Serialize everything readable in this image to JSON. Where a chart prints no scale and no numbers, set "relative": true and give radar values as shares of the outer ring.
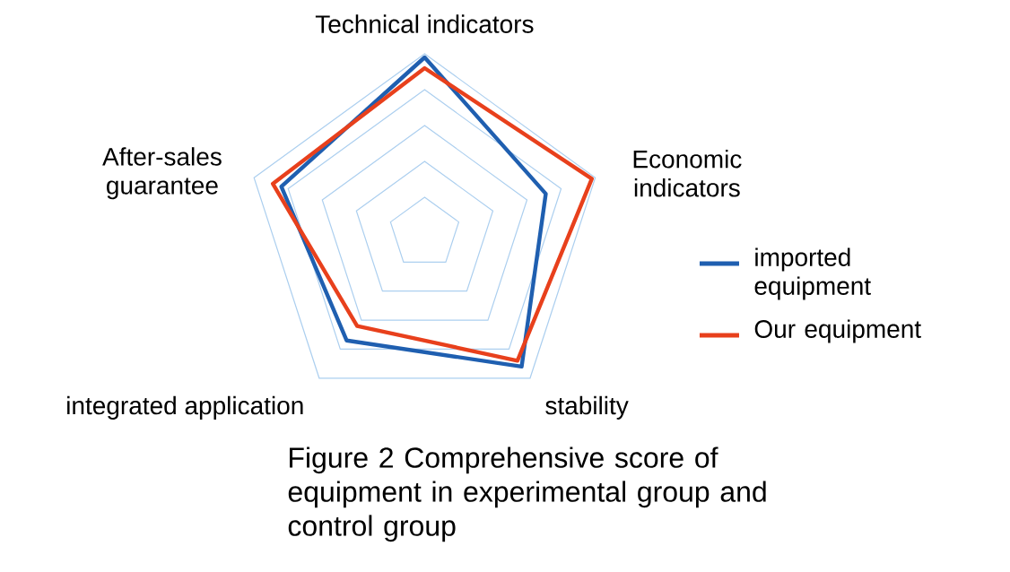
{
  "chart_data": {
    "type": "radar",
    "title": "Figure 2  Comprehensive score of equipment in experimental group and control group",
    "relative": true,
    "grid": true,
    "legend": "right",
    "categories": [
      "Technical indicators",
      "Economic indicators",
      "stability",
      "integrated application",
      "After-sales guarantee"
    ],
    "series": [
      {
        "name": "imported equipment",
        "color": "#1f5fb0",
        "values": [
          0.98,
          0.71,
          0.92,
          0.74,
          0.84
        ]
      },
      {
        "name": "Our equipment",
        "color": "#e8401c",
        "values": [
          0.92,
          0.98,
          0.88,
          0.64,
          0.89
        ]
      }
    ]
  }
}
